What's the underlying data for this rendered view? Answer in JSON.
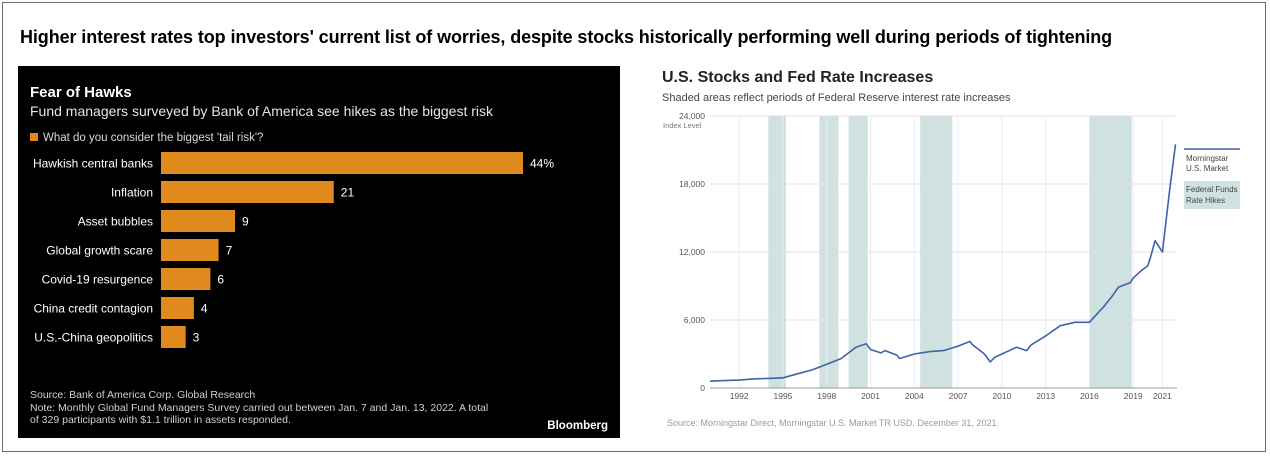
{
  "headline": "Higher interest rates top investors' current list of worries, despite stocks historically performing well during periods of tightening",
  "left_chart": {
    "title": "Fear of Hawks",
    "subtitle": "Fund managers surveyed by Bank of America see hikes as the biggest risk",
    "legend_label": "What do you consider the biggest 'tail risk'?",
    "source": "Source: Bank of America Corp. Global Research",
    "note_line1": "Note: Monthly Global Fund Managers Survey carried out between Jan. 7 and Jan. 13, 2022. A total",
    "note_line2": "of 329 participants with $1.1 trillion in assets responded.",
    "brand": "Bloomberg",
    "bar_color": "#e08a1e"
  },
  "right_chart": {
    "title": "U.S. Stocks and Fed Rate Increases",
    "subtitle": "Shaded areas reflect periods of Federal Reserve interest rate increases",
    "source": "Source: Morningstar Direct, Morningstar U.S. Market TR USD. December 31, 2021.",
    "line_color": "#3d63a8",
    "shade_color": "#cfe1e1"
  },
  "chart_data": [
    {
      "type": "bar",
      "orientation": "horizontal",
      "categories": [
        "Hawkish central banks",
        "Inflation",
        "Asset bubbles",
        "Global growth scare",
        "Covid-19 resurgence",
        "China credit contagion",
        "U.S.-China geopolitics"
      ],
      "values": [
        44,
        21,
        9,
        7,
        6,
        4,
        3
      ],
      "value_labels": [
        "44%",
        "21",
        "9",
        "7",
        "6",
        "4",
        "3"
      ],
      "xlim": [
        0,
        50
      ],
      "grid": false,
      "legend": "top-left"
    },
    {
      "type": "line",
      "series": [
        {
          "name": "Morningstar U.S. Market",
          "x": [
            1990,
            1991,
            1992,
            1993,
            1994,
            1995,
            1996,
            1997,
            1998,
            1999,
            2000,
            2000.7,
            2001,
            2001.7,
            2002,
            2002.8,
            2003,
            2004,
            2005,
            2006,
            2007,
            2007.8,
            2008,
            2008.8,
            2009.2,
            2009.5,
            2010,
            2011,
            2011.7,
            2012,
            2013,
            2014,
            2015,
            2016,
            2016.5,
            2017,
            2017.5,
            2018,
            2018.8,
            2019,
            2019.5,
            2020,
            2020.2,
            2020.5,
            2021,
            2021.5,
            2021.9
          ],
          "values": [
            600,
            650,
            700,
            800,
            850,
            900,
            1250,
            1600,
            2100,
            2600,
            3600,
            3900,
            3400,
            3100,
            3300,
            2900,
            2600,
            3000,
            3200,
            3300,
            3700,
            4100,
            3800,
            3000,
            2300,
            2700,
            3000,
            3600,
            3300,
            3800,
            4600,
            5500,
            5800,
            5800,
            6500,
            7200,
            8000,
            8900,
            9300,
            9700,
            10300,
            10800,
            11600,
            13000,
            12000,
            17500,
            21500
          ]
        }
      ],
      "x_ticks": [
        "1992",
        "1995",
        "1998",
        "2001",
        "2004",
        "2007",
        "2010",
        "2013",
        "2016",
        "2019",
        "2021"
      ],
      "y_ticks": [
        "0",
        "6,000",
        "12,000",
        "18,000",
        "24,000"
      ],
      "ylabel": "Index Level",
      "xlim": [
        1990,
        2022
      ],
      "ylim": [
        0,
        24000
      ],
      "grid": true,
      "shaded_regions": [
        [
          1994.0,
          1995.2
        ],
        [
          1997.5,
          1998.8
        ],
        [
          1999.5,
          2000.8
        ],
        [
          2004.4,
          2006.6
        ],
        [
          2016.0,
          2018.9
        ]
      ],
      "legend": [
        {
          "label_line1": "Morningstar",
          "label_line2": "U.S. Market",
          "kind": "line"
        },
        {
          "label_line1": "Federal Funds",
          "label_line2": "Rate Hikes",
          "kind": "shade"
        }
      ],
      "legend_position": "right"
    }
  ]
}
